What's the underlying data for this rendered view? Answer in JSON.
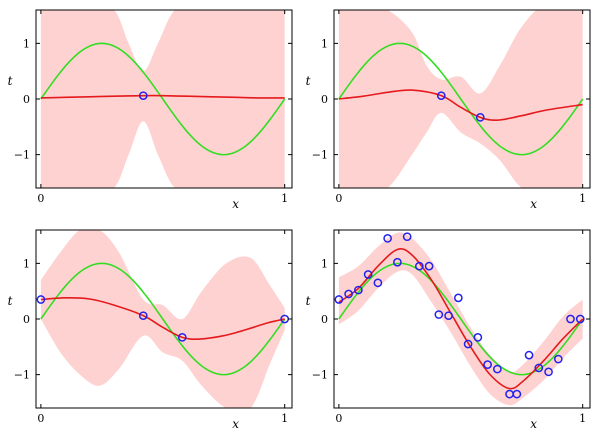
{
  "colors": {
    "band": "#ffd2d2",
    "mean": "#e41a1c",
    "truth": "#33dd22",
    "points": "#2222ee",
    "axes": "#000000"
  },
  "chart_data": [
    {
      "type": "line",
      "panel": "top-left",
      "xlabel": "x",
      "ylabel": "t",
      "xlim": [
        -0.02,
        1.03
      ],
      "ylim": [
        -1.6,
        1.6
      ],
      "xticks": [
        {
          "v": 0,
          "label": "0"
        },
        {
          "v": 1,
          "label": "1"
        }
      ],
      "yticks": [
        {
          "v": -1,
          "label": "−1"
        },
        {
          "v": 0,
          "label": "0"
        },
        {
          "v": 1,
          "label": "1"
        }
      ],
      "observations": [
        {
          "x": 0.42,
          "y": 0.06
        }
      ],
      "mean": {
        "x": [
          0.0,
          0.1,
          0.2,
          0.3,
          0.42,
          0.5,
          0.6,
          0.7,
          0.8,
          0.9,
          1.0
        ],
        "y": [
          0.02,
          0.03,
          0.04,
          0.05,
          0.06,
          0.06,
          0.05,
          0.04,
          0.03,
          0.02,
          0.02
        ]
      },
      "band": {
        "x": [
          0.0,
          0.1,
          0.2,
          0.3,
          0.36,
          0.42,
          0.48,
          0.55,
          0.65,
          0.8,
          1.0
        ],
        "upper": [
          1.7,
          1.7,
          1.7,
          1.6,
          1.0,
          0.5,
          1.0,
          1.6,
          1.7,
          1.7,
          1.7
        ],
        "lower": [
          -1.7,
          -1.7,
          -1.7,
          -1.6,
          -1.0,
          -0.4,
          -1.0,
          -1.6,
          -1.7,
          -1.7,
          -1.7
        ]
      }
    },
    {
      "type": "line",
      "panel": "top-right",
      "xlabel": "x",
      "ylabel": "t",
      "xlim": [
        -0.02,
        1.03
      ],
      "ylim": [
        -1.6,
        1.6
      ],
      "xticks": [
        {
          "v": 0,
          "label": "0"
        },
        {
          "v": 1,
          "label": "1"
        }
      ],
      "yticks": [
        {
          "v": -1,
          "label": "−1"
        },
        {
          "v": 0,
          "label": "0"
        },
        {
          "v": 1,
          "label": "1"
        }
      ],
      "observations": [
        {
          "x": 0.42,
          "y": 0.06
        },
        {
          "x": 0.58,
          "y": -0.33
        }
      ],
      "mean": {
        "x": [
          0.0,
          0.1,
          0.2,
          0.3,
          0.42,
          0.5,
          0.58,
          0.65,
          0.75,
          0.85,
          1.0
        ],
        "y": [
          0.0,
          0.05,
          0.12,
          0.16,
          0.06,
          -0.15,
          -0.33,
          -0.38,
          -0.3,
          -0.2,
          -0.1
        ]
      },
      "band": {
        "x": [
          0.0,
          0.1,
          0.2,
          0.3,
          0.36,
          0.42,
          0.5,
          0.58,
          0.66,
          0.75,
          0.85,
          1.0
        ],
        "upper": [
          1.7,
          1.7,
          1.6,
          1.2,
          0.6,
          0.35,
          0.4,
          0.1,
          0.6,
          1.3,
          1.7,
          1.7
        ],
        "lower": [
          -1.7,
          -1.7,
          -1.6,
          -1.0,
          -0.6,
          -0.25,
          -0.6,
          -0.8,
          -1.1,
          -1.6,
          -1.7,
          -1.7
        ]
      }
    },
    {
      "type": "line",
      "panel": "bottom-left",
      "xlabel": "x",
      "ylabel": "t",
      "xlim": [
        -0.02,
        1.03
      ],
      "ylim": [
        -1.6,
        1.6
      ],
      "xticks": [
        {
          "v": 0,
          "label": "0"
        },
        {
          "v": 1,
          "label": "1"
        }
      ],
      "yticks": [
        {
          "v": -1,
          "label": "−1"
        },
        {
          "v": 0,
          "label": "0"
        },
        {
          "v": 1,
          "label": "1"
        }
      ],
      "observations": [
        {
          "x": 0.0,
          "y": 0.35
        },
        {
          "x": 0.42,
          "y": 0.06
        },
        {
          "x": 0.58,
          "y": -0.33
        },
        {
          "x": 1.0,
          "y": 0.0
        }
      ],
      "mean": {
        "x": [
          0.0,
          0.1,
          0.2,
          0.3,
          0.42,
          0.5,
          0.58,
          0.65,
          0.75,
          0.85,
          0.93,
          1.0
        ],
        "y": [
          0.35,
          0.38,
          0.36,
          0.25,
          0.06,
          -0.15,
          -0.33,
          -0.36,
          -0.3,
          -0.18,
          -0.07,
          0.0
        ]
      },
      "band": {
        "x": [
          0.0,
          0.08,
          0.16,
          0.24,
          0.32,
          0.42,
          0.5,
          0.58,
          0.66,
          0.76,
          0.86,
          0.94,
          1.0
        ],
        "upper": [
          0.7,
          1.2,
          1.6,
          1.6,
          1.2,
          0.35,
          0.25,
          0.0,
          0.5,
          1.0,
          1.1,
          0.6,
          0.2
        ],
        "lower": [
          0.0,
          -0.6,
          -1.0,
          -1.2,
          -0.9,
          -0.3,
          -0.6,
          -0.75,
          -1.2,
          -1.6,
          -1.6,
          -0.8,
          -0.2
        ]
      }
    },
    {
      "type": "line",
      "panel": "bottom-right",
      "xlabel": "x",
      "ylabel": "t",
      "xlim": [
        -0.02,
        1.03
      ],
      "ylim": [
        -1.6,
        1.6
      ],
      "xticks": [
        {
          "v": 0,
          "label": "0"
        },
        {
          "v": 1,
          "label": "1"
        }
      ],
      "yticks": [
        {
          "v": -1,
          "label": "−1"
        },
        {
          "v": 0,
          "label": "0"
        },
        {
          "v": 1,
          "label": "1"
        }
      ],
      "observations": [
        {
          "x": 0.0,
          "y": 0.35
        },
        {
          "x": 0.04,
          "y": 0.45
        },
        {
          "x": 0.08,
          "y": 0.52
        },
        {
          "x": 0.12,
          "y": 0.8
        },
        {
          "x": 0.16,
          "y": 0.65
        },
        {
          "x": 0.2,
          "y": 1.45
        },
        {
          "x": 0.24,
          "y": 1.02
        },
        {
          "x": 0.28,
          "y": 1.48
        },
        {
          "x": 0.33,
          "y": 0.95
        },
        {
          "x": 0.37,
          "y": 0.95
        },
        {
          "x": 0.41,
          "y": 0.08
        },
        {
          "x": 0.45,
          "y": 0.06
        },
        {
          "x": 0.49,
          "y": 0.38
        },
        {
          "x": 0.53,
          "y": -0.45
        },
        {
          "x": 0.57,
          "y": -0.33
        },
        {
          "x": 0.61,
          "y": -0.82
        },
        {
          "x": 0.65,
          "y": -0.9
        },
        {
          "x": 0.7,
          "y": -1.35
        },
        {
          "x": 0.73,
          "y": -1.35
        },
        {
          "x": 0.78,
          "y": -0.65
        },
        {
          "x": 0.82,
          "y": -0.88
        },
        {
          "x": 0.86,
          "y": -0.95
        },
        {
          "x": 0.9,
          "y": -0.72
        },
        {
          "x": 0.95,
          "y": 0.0
        },
        {
          "x": 0.99,
          "y": 0.0
        }
      ],
      "mean": {
        "x": [
          0.0,
          0.08,
          0.16,
          0.24,
          0.3,
          0.38,
          0.46,
          0.54,
          0.62,
          0.7,
          0.76,
          0.84,
          0.92,
          1.0
        ],
        "y": [
          0.3,
          0.55,
          0.95,
          1.25,
          1.15,
          0.7,
          0.1,
          -0.5,
          -1.0,
          -1.25,
          -1.1,
          -0.75,
          -0.35,
          0.0
        ]
      },
      "truth_only_label": "",
      "band": {
        "x": [
          0.0,
          0.08,
          0.16,
          0.24,
          0.3,
          0.38,
          0.46,
          0.54,
          0.62,
          0.7,
          0.76,
          0.84,
          0.92,
          1.0
        ],
        "upper": [
          0.75,
          0.95,
          1.3,
          1.55,
          1.45,
          1.05,
          0.45,
          -0.15,
          -0.65,
          -0.95,
          -0.8,
          -0.4,
          0.05,
          0.35
        ],
        "lower": [
          -0.1,
          0.15,
          0.55,
          0.85,
          0.8,
          0.3,
          -0.25,
          -0.85,
          -1.35,
          -1.55,
          -1.4,
          -1.1,
          -0.7,
          -0.35
        ]
      }
    }
  ]
}
